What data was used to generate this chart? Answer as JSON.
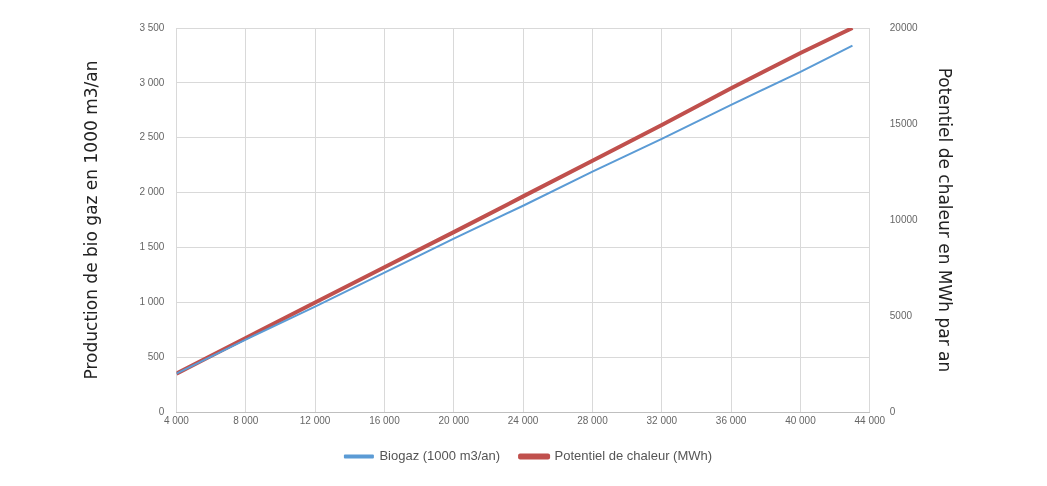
{
  "chart_data": {
    "type": "line",
    "xlabel": null,
    "ylabel": "Production de bio gaz en 1000 m3/an",
    "y2label": "Potentiel de chaleur en MWh par an",
    "x": [
      4000,
      8000,
      12000,
      16000,
      20000,
      24000,
      28000,
      32000,
      36000,
      40000,
      43000
    ],
    "series": [
      {
        "name": "Biogaz (1000 m3/an)",
        "color": "#5b9bd5",
        "values": [
          350,
          660,
          960,
          1270,
          1580,
          1880,
          2190,
          2490,
          2800,
          3100,
          3340
        ]
      },
      {
        "name": "Potentiel de chaleur (MWh)",
        "color": "#c0504d",
        "axis": "y2",
        "values": [
          2000,
          3850,
          5700,
          7540,
          9370,
          11230,
          13090,
          14950,
          16860,
          18700,
          20000
        ]
      }
    ],
    "xlim": [
      4000,
      44000
    ],
    "xticks": [
      {
        "value": 4000,
        "label": "4 000"
      },
      {
        "value": 8000,
        "label": "8 000"
      },
      {
        "value": 12000,
        "label": "12 000"
      },
      {
        "value": 16000,
        "label": "16 000"
      },
      {
        "value": 20000,
        "label": "20 000"
      },
      {
        "value": 24000,
        "label": "24 000"
      },
      {
        "value": 28000,
        "label": "28 000"
      },
      {
        "value": 32000,
        "label": "32 000"
      },
      {
        "value": 36000,
        "label": "36 000"
      },
      {
        "value": 40000,
        "label": "40 000"
      },
      {
        "value": 44000,
        "label": "44 000"
      }
    ],
    "ylim": [
      0,
      3500
    ],
    "yticks": [
      0,
      500,
      {
        "value": 1000,
        "label": "1 000"
      },
      {
        "value": 1500,
        "label": "1 500"
      },
      {
        "value": 2000,
        "label": "2 000"
      },
      {
        "value": 2500,
        "label": "2 500"
      },
      {
        "value": 3000,
        "label": "3 000"
      },
      {
        "value": 3500,
        "label": "3 500"
      }
    ],
    "y2lim": [
      0,
      20000
    ],
    "y2ticks": [
      0,
      5000,
      10000,
      15000,
      20000
    ],
    "grid": true,
    "legend": "bottom",
    "marker": "none",
    "line_style": "solid"
  }
}
